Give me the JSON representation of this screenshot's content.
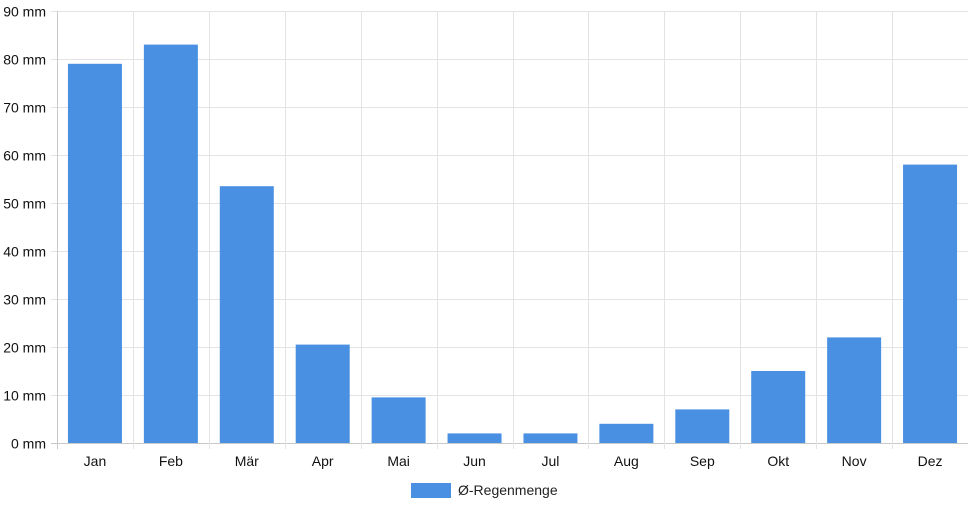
{
  "chart_data": {
    "type": "bar",
    "categories": [
      "Jan",
      "Feb",
      "Mär",
      "Apr",
      "Mai",
      "Jun",
      "Jul",
      "Aug",
      "Sep",
      "Okt",
      "Nov",
      "Dez"
    ],
    "series": [
      {
        "name": "Ø-Regenmenge",
        "values": [
          79,
          83,
          53.5,
          20.5,
          9.5,
          2,
          2,
          4,
          7,
          15,
          22,
          58
        ],
        "color": "#4a90e2"
      }
    ],
    "ylim": [
      0,
      90
    ],
    "yticks": [
      0,
      10,
      20,
      30,
      40,
      50,
      60,
      70,
      80,
      90
    ],
    "y_unit": "mm",
    "grid": true,
    "legend_position": "bottom"
  }
}
